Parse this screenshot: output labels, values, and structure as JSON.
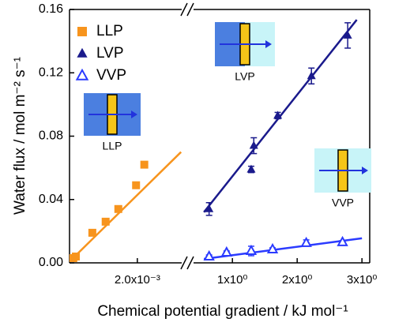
{
  "chart_data": {
    "type": "scatter",
    "xlabel": "Chemical potential gradient / kJ mol⁻¹",
    "ylabel": "Water flux / mol m⁻² s⁻¹",
    "ylim": [
      0,
      0.16
    ],
    "yticks": [
      {
        "value": 0,
        "label": "0.00"
      },
      0.04,
      0.08,
      0.12,
      0.16
    ],
    "legend": "upper left",
    "annotations": [
      "LLP",
      "LVP",
      "VVP"
    ],
    "panels": [
      {
        "xlim": [
          0.00093,
          0.0027
        ],
        "xticks": [
          {
            "value": 0.002,
            "label": "2.0x10⁻³"
          }
        ]
      },
      {
        "xlim": [
          0.4,
          3.12
        ],
        "xticks": [
          {
            "value": 1,
            "label": "1x10⁰"
          },
          {
            "value": 2,
            "label": "2x10⁰"
          },
          {
            "value": 3,
            "label": "3x10⁰"
          }
        ]
      }
    ],
    "series": [
      {
        "name": "LLP",
        "color": "#f7941d",
        "marker": "square",
        "panel": 0,
        "x": [
          0.00099,
          0.00103,
          0.00129,
          0.0015,
          0.0017,
          0.00198,
          0.00211
        ],
        "values": [
          0.003,
          0.004,
          0.019,
          0.026,
          0.034,
          0.049,
          0.062
        ],
        "fit": {
          "x": [
            0.00096,
            0.00269
          ],
          "y": [
            0.002,
            0.07
          ]
        }
      },
      {
        "name": "LVP",
        "color": "#1a1a8c",
        "marker": "triangle",
        "panel": 1,
        "x": [
          0.64,
          1.29,
          1.33,
          1.7,
          2.22,
          2.78
        ],
        "values": [
          0.034,
          0.059,
          0.074,
          0.093,
          0.118,
          0.1436
        ],
        "errors": [
          0.004,
          0.002,
          0.005,
          0.002,
          0.005,
          0.008
        ],
        "fit": {
          "x": [
            0.56,
            2.92
          ],
          "y": [
            0.032,
            0.1535
          ]
        }
      },
      {
        "name": "VVP",
        "color": "#2b3bff",
        "marker": "open-triangle",
        "panel": 1,
        "x": [
          0.64,
          0.91,
          1.29,
          1.62,
          2.14,
          2.7
        ],
        "values": [
          0.004,
          0.0065,
          0.0075,
          0.0085,
          0.0125,
          0.013
        ],
        "errors": [
          0.001,
          0.001,
          0.003,
          0.001,
          0.002,
          0.001
        ],
        "fit": {
          "x": [
            0.56,
            3.0
          ],
          "y": [
            0.0025,
            0.0155
          ]
        }
      }
    ]
  }
}
